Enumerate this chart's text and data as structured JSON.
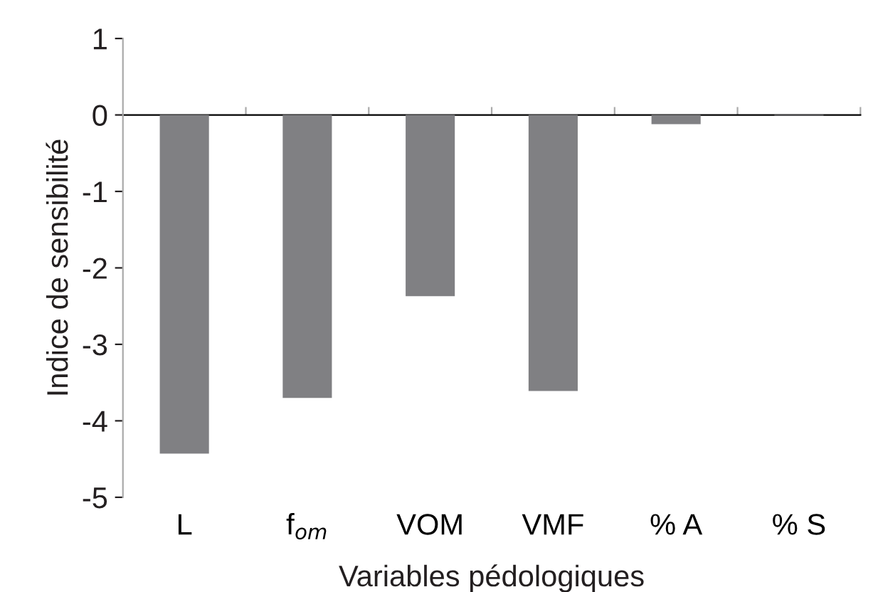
{
  "chart_data": {
    "type": "bar",
    "xlabel": "Variables pédologiques",
    "ylabel": "Indice de sensibilité",
    "categories": [
      "L",
      "f$_{om}$",
      "VOM",
      "VMF",
      "% A",
      "% S"
    ],
    "values": [
      -4.43,
      -3.7,
      -2.37,
      -3.61,
      -0.12,
      -0.01
    ],
    "color": "#808083",
    "ylim": [
      -5,
      1
    ],
    "yticks": [
      -5,
      -4,
      -3,
      -2,
      -1,
      0,
      1
    ]
  }
}
